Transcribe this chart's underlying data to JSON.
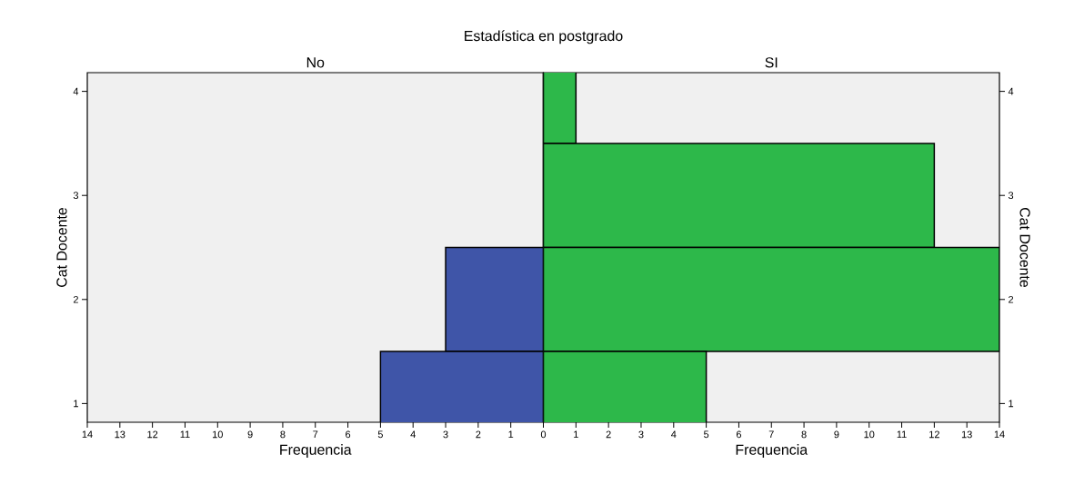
{
  "chart_data": [
    {
      "type": "bar",
      "orientation": "horizontal",
      "title": "Estadística en postgrado",
      "subtitle": "No",
      "xlabel": "Frequencia",
      "ylabel": "Cat Docente",
      "categories": [
        "4",
        "3",
        "2",
        "1"
      ],
      "values": [
        0,
        0,
        3,
        5
      ],
      "color": "#3f55a8",
      "xlim": [
        14,
        0
      ],
      "xticks": [
        14,
        13,
        12,
        11,
        10,
        9,
        8,
        7,
        6,
        5,
        4,
        3,
        2,
        1,
        {
          "value": 0,
          "label": null
        }
      ]
    },
    {
      "type": "bar",
      "orientation": "horizontal",
      "subtitle": "SI",
      "xlabel": "Frequencia",
      "ylabel": "Cat Docente",
      "categories": [
        "4",
        "3",
        "2",
        "1"
      ],
      "values": [
        1,
        12,
        14,
        5
      ],
      "color": "#2db84a",
      "xlim": [
        0,
        14
      ],
      "xticks": [
        0,
        1,
        2,
        3,
        4,
        5,
        6,
        7,
        8,
        9,
        10,
        11,
        12,
        13,
        14
      ]
    }
  ]
}
